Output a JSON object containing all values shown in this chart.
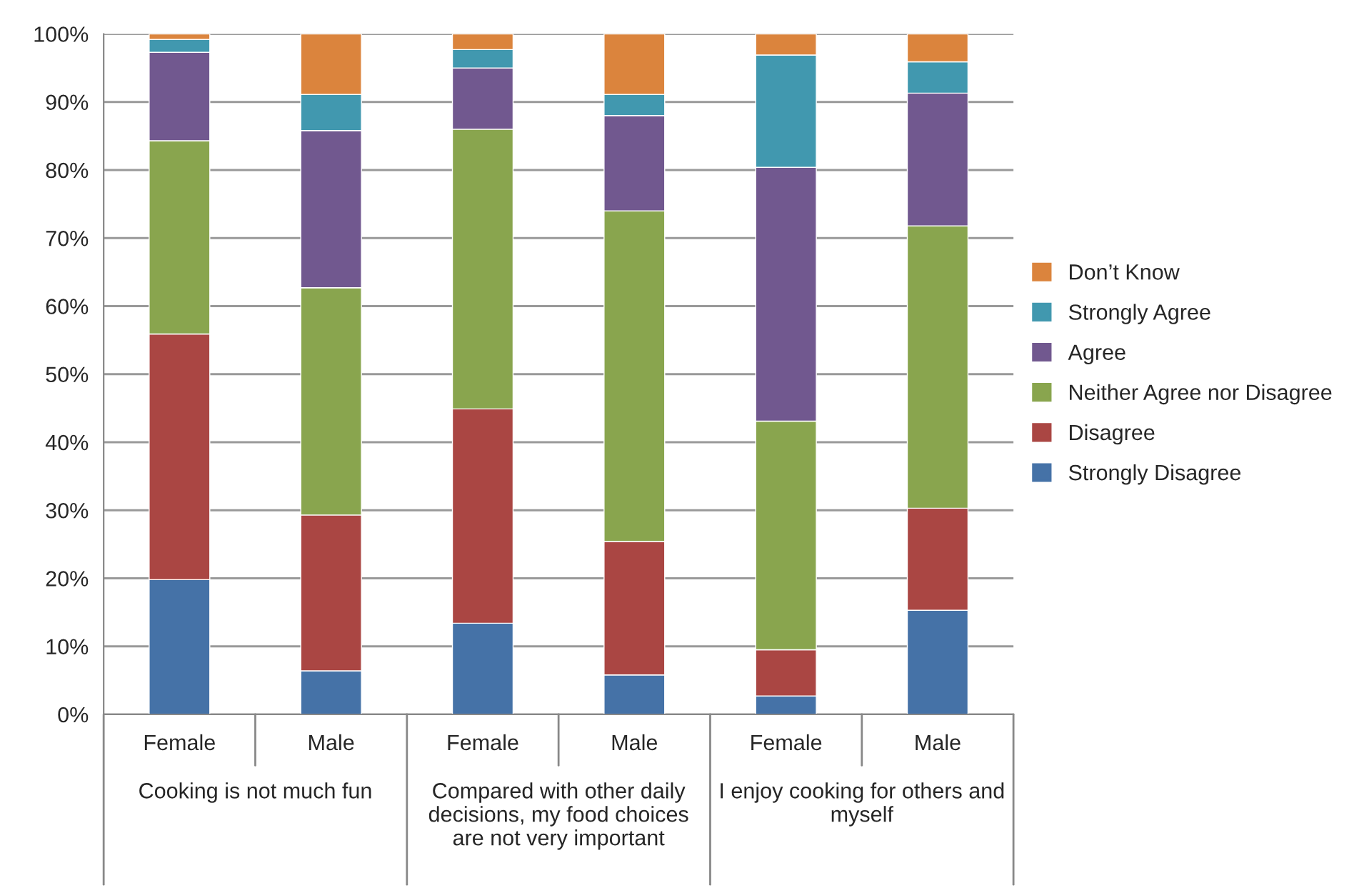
{
  "chart_data": {
    "type": "bar",
    "stacked": true,
    "categories": [
      "Female",
      "Male",
      "Female",
      "Male",
      "Female",
      "Male"
    ],
    "annotations": [
      "Cooking is not much fun",
      "Compared with other daily decisions, my food choices are not very important",
      "I enjoy cooking for others and myself"
    ],
    "series": [
      {
        "name": "Strongly Disagree",
        "color": "#4572a7",
        "values": [
          19.8,
          6.4,
          13.4,
          5.8,
          2.7,
          15.3
        ]
      },
      {
        "name": "Disagree",
        "color": "#aa4643",
        "values": [
          36.1,
          22.9,
          31.5,
          19.6,
          6.8,
          15.0
        ]
      },
      {
        "name": "Neither Agree nor Disagree",
        "color": "#89a54e",
        "values": [
          28.4,
          33.4,
          41.1,
          48.6,
          33.6,
          41.5
        ]
      },
      {
        "name": "Agree",
        "color": "#71588f",
        "values": [
          13.0,
          23.1,
          9.0,
          14.0,
          37.3,
          19.5
        ]
      },
      {
        "name": "Strongly Agree",
        "color": "#4198af",
        "values": [
          1.9,
          5.3,
          2.7,
          3.1,
          16.5,
          4.6
        ]
      },
      {
        "name": "Don’t Know",
        "color": "#db843d",
        "values": [
          0.8,
          8.9,
          2.3,
          8.9,
          3.1,
          4.1
        ]
      }
    ],
    "ylim": [
      0,
      100
    ],
    "yticks": [
      {
        "value": 0,
        "label": "0%"
      },
      {
        "value": 10,
        "label": "10%"
      },
      {
        "value": 20,
        "label": "20%"
      },
      {
        "value": 30,
        "label": "30%"
      },
      {
        "value": 40,
        "label": "40%"
      },
      {
        "value": 50,
        "label": "50%"
      },
      {
        "value": 60,
        "label": "60%"
      },
      {
        "value": 70,
        "label": "70%"
      },
      {
        "value": 80,
        "label": "80%"
      },
      {
        "value": 90,
        "label": "90%"
      },
      {
        "value": 100,
        "label": "100%"
      }
    ],
    "grid": "y",
    "legend": "right"
  }
}
